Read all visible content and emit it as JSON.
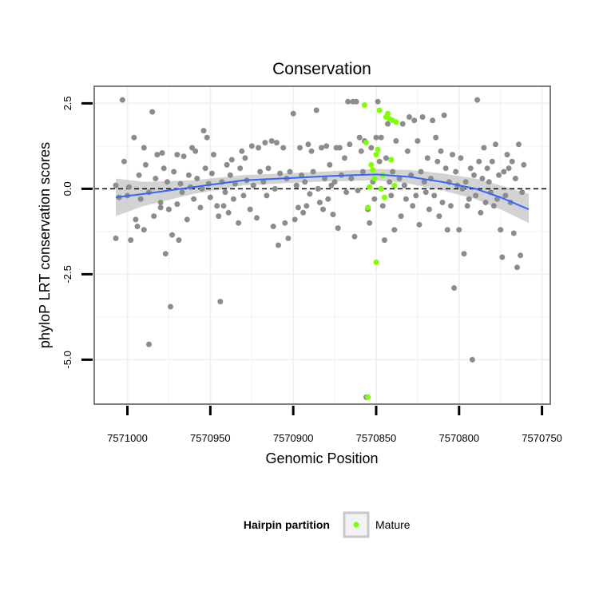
{
  "chart_data": {
    "type": "scatter",
    "title": "Conservation",
    "xlabel": "Genomic Position",
    "ylabel": "phyloP LRT conservation scores",
    "xlim": [
      7571020,
      7570745
    ],
    "ylim": [
      -6.3,
      3.0
    ],
    "x_reversed": true,
    "x_ticks": [
      7571000,
      7570950,
      7570900,
      7570850,
      7570800,
      7570750
    ],
    "x_tick_labels": [
      "7571000",
      "7570950",
      "7570900",
      "7570850",
      "7570800",
      "7570750"
    ],
    "y_ticks": [
      2.5,
      0.0,
      -2.5,
      -5.0
    ],
    "y_tick_labels": [
      "2.5",
      "0.0",
      "-2.5",
      "-5.0"
    ],
    "reference_line": {
      "y": 0,
      "style": "dashed"
    },
    "grid": true,
    "colors": {
      "other": "#8c8c8c",
      "mature": "#7fff00",
      "smooth": "#3366ff",
      "band": "#c8c8c8",
      "panel_border": "#7f7f7f",
      "grid": "#f2f2f2"
    },
    "legend": {
      "title": "Hairpin partition",
      "position": "bottom",
      "entries": [
        {
          "label": "Mature",
          "color": "#7fff00"
        }
      ]
    },
    "smooth": {
      "x": [
        7571007,
        7570990,
        7570960,
        7570930,
        7570900,
        7570875,
        7570850,
        7570830,
        7570810,
        7570790,
        7570775,
        7570758
      ],
      "y": [
        -0.25,
        -0.15,
        0.05,
        0.25,
        0.32,
        0.38,
        0.42,
        0.35,
        0.2,
        0.0,
        -0.25,
        -0.6
      ],
      "lower": [
        -0.8,
        -0.5,
        -0.15,
        0.1,
        0.18,
        0.22,
        0.25,
        0.15,
        -0.05,
        -0.3,
        -0.6,
        -1.0
      ],
      "upper": [
        0.3,
        0.2,
        0.25,
        0.4,
        0.46,
        0.52,
        0.58,
        0.55,
        0.45,
        0.3,
        0.1,
        -0.15
      ]
    },
    "series": [
      {
        "name": "Other",
        "points": [
          [
            7571007,
            -1.45
          ],
          [
            7571007,
            0.1
          ],
          [
            7571005,
            -0.25
          ],
          [
            7571003,
            2.6
          ],
          [
            7571002,
            0.8
          ],
          [
            7571000,
            -0.2
          ],
          [
            7570999,
            0.05
          ],
          [
            7570998,
            -1.5
          ],
          [
            7570996,
            1.5
          ],
          [
            7570995,
            -0.9
          ],
          [
            7570994,
            -1.1
          ],
          [
            7570993,
            0.4
          ],
          [
            7570992,
            -0.3
          ],
          [
            7570990,
            1.2
          ],
          [
            7570990,
            -1.2
          ],
          [
            7570989,
            0.7
          ],
          [
            7570987,
            -0.1
          ],
          [
            7570987,
            -4.55
          ],
          [
            7570985,
            2.25
          ],
          [
            7570984,
            -0.8
          ],
          [
            7570983,
            0.3
          ],
          [
            7570982,
            1.0
          ],
          [
            7570980,
            -0.4
          ],
          [
            7570980,
            -0.55
          ],
          [
            7570979,
            1.05
          ],
          [
            7570978,
            0.6
          ],
          [
            7570977,
            -1.9
          ],
          [
            7570976,
            0.2
          ],
          [
            7570975,
            -0.6
          ],
          [
            7570974,
            -3.45
          ],
          [
            7570973,
            -1.35
          ],
          [
            7570972,
            0.5
          ],
          [
            7570970,
            1.0
          ],
          [
            7570970,
            -0.45
          ],
          [
            7570969,
            -1.5
          ],
          [
            7570968,
            0.15
          ],
          [
            7570967,
            -0.1
          ],
          [
            7570966,
            0.95
          ],
          [
            7570964,
            -0.9
          ],
          [
            7570963,
            0.4
          ],
          [
            7570962,
            0.05
          ],
          [
            7570961,
            1.2
          ],
          [
            7570960,
            -0.3
          ],
          [
            7570959,
            1.1
          ],
          [
            7570958,
            0.3
          ],
          [
            7570956,
            -0.55
          ],
          [
            7570955,
            0.0
          ],
          [
            7570954,
            1.7
          ],
          [
            7570953,
            0.6
          ],
          [
            7570952,
            1.5
          ],
          [
            7570951,
            0.15
          ],
          [
            7570950,
            -0.25
          ],
          [
            7570949,
            0.45
          ],
          [
            7570948,
            1.0
          ],
          [
            7570946,
            -0.5
          ],
          [
            7570945,
            -0.8
          ],
          [
            7570944,
            -3.3
          ],
          [
            7570943,
            0.2
          ],
          [
            7570942,
            -0.5
          ],
          [
            7570941,
            -0.1
          ],
          [
            7570940,
            0.7
          ],
          [
            7570939,
            -0.7
          ],
          [
            7570938,
            0.4
          ],
          [
            7570937,
            0.85
          ],
          [
            7570936,
            -0.3
          ],
          [
            7570935,
            0.15
          ],
          [
            7570933,
            -1.0
          ],
          [
            7570932,
            0.6
          ],
          [
            7570931,
            1.1
          ],
          [
            7570930,
            -0.2
          ],
          [
            7570929,
            0.9
          ],
          [
            7570928,
            0.25
          ],
          [
            7570926,
            -0.6
          ],
          [
            7570925,
            1.25
          ],
          [
            7570924,
            0.1
          ],
          [
            7570922,
            -0.85
          ],
          [
            7570921,
            1.2
          ],
          [
            7570920,
            0.5
          ],
          [
            7570918,
            0.2
          ],
          [
            7570917,
            1.35
          ],
          [
            7570916,
            -0.2
          ],
          [
            7570915,
            0.6
          ],
          [
            7570913,
            1.4
          ],
          [
            7570912,
            -1.1
          ],
          [
            7570911,
            0.0
          ],
          [
            7570910,
            1.35
          ],
          [
            7570909,
            -1.65
          ],
          [
            7570908,
            0.45
          ],
          [
            7570906,
            1.2
          ],
          [
            7570905,
            -1.0
          ],
          [
            7570904,
            0.3
          ],
          [
            7570903,
            -1.45
          ],
          [
            7570902,
            0.5
          ],
          [
            7570900,
            2.2
          ],
          [
            7570899,
            -0.9
          ],
          [
            7570898,
            0.1
          ],
          [
            7570897,
            -0.55
          ],
          [
            7570896,
            1.2
          ],
          [
            7570895,
            0.4
          ],
          [
            7570894,
            -0.7
          ],
          [
            7570893,
            0.2
          ],
          [
            7570892,
            -0.5
          ],
          [
            7570891,
            1.3
          ],
          [
            7570890,
            -0.15
          ],
          [
            7570889,
            1.1
          ],
          [
            7570888,
            0.5
          ],
          [
            7570886,
            2.3
          ],
          [
            7570885,
            0.0
          ],
          [
            7570884,
            -0.4
          ],
          [
            7570883,
            1.2
          ],
          [
            7570882,
            -0.6
          ],
          [
            7570881,
            0.3
          ],
          [
            7570880,
            1.25
          ],
          [
            7570879,
            -0.3
          ],
          [
            7570878,
            0.7
          ],
          [
            7570877,
            0.1
          ],
          [
            7570876,
            -0.75
          ],
          [
            7570875,
            0.2
          ],
          [
            7570874,
            1.2
          ],
          [
            7570873,
            -1.15
          ],
          [
            7570872,
            1.2
          ],
          [
            7570871,
            0.4
          ],
          [
            7570869,
            0.9
          ],
          [
            7570868,
            -0.1
          ],
          [
            7570867,
            2.55
          ],
          [
            7570866,
            1.3
          ],
          [
            7570865,
            0.3
          ],
          [
            7570864,
            2.55
          ],
          [
            7570863,
            -1.4
          ],
          [
            7570862,
            2.55
          ],
          [
            7570861,
            -0.05
          ],
          [
            7570860,
            1.5
          ],
          [
            7570859,
            1.1
          ],
          [
            7570858,
            0.5
          ],
          [
            7570857,
            1.4
          ],
          [
            7570856,
            -6.1
          ],
          [
            7570855,
            -0.6
          ],
          [
            7570854,
            -1.0
          ],
          [
            7570853,
            1.2
          ],
          [
            7570852,
            0.2
          ],
          [
            7570851,
            -0.3
          ],
          [
            7570850,
            1.5
          ],
          [
            7570849,
            2.55
          ],
          [
            7570848,
            0.8
          ],
          [
            7570847,
            1.5
          ],
          [
            7570846,
            -0.5
          ],
          [
            7570845,
            -1.5
          ],
          [
            7570844,
            0.9
          ],
          [
            7570843,
            1.9
          ],
          [
            7570842,
            0.2
          ],
          [
            7570841,
            -0.2
          ],
          [
            7570840,
            0.5
          ],
          [
            7570839,
            -1.2
          ],
          [
            7570838,
            1.4
          ],
          [
            7570836,
            0.3
          ],
          [
            7570835,
            -0.8
          ],
          [
            7570834,
            1.9
          ],
          [
            7570833,
            0.1
          ],
          [
            7570832,
            -0.3
          ],
          [
            7570831,
            1.1
          ],
          [
            7570830,
            2.1
          ],
          [
            7570829,
            0.4
          ],
          [
            7570828,
            -0.5
          ],
          [
            7570827,
            2.0
          ],
          [
            7570826,
            -0.2
          ],
          [
            7570825,
            1.4
          ],
          [
            7570824,
            -1.05
          ],
          [
            7570823,
            0.5
          ],
          [
            7570822,
            2.1
          ],
          [
            7570821,
            0.2
          ],
          [
            7570820,
            -0.1
          ],
          [
            7570819,
            0.9
          ],
          [
            7570818,
            -0.6
          ],
          [
            7570817,
            0.3
          ],
          [
            7570816,
            2.0
          ],
          [
            7570815,
            -0.2
          ],
          [
            7570814,
            1.5
          ],
          [
            7570813,
            0.8
          ],
          [
            7570812,
            -0.8
          ],
          [
            7570811,
            1.1
          ],
          [
            7570810,
            -0.4
          ],
          [
            7570809,
            2.15
          ],
          [
            7570808,
            0.6
          ],
          [
            7570807,
            -1.2
          ],
          [
            7570806,
            0.2
          ],
          [
            7570805,
            -0.5
          ],
          [
            7570804,
            1.0
          ],
          [
            7570803,
            -2.9
          ],
          [
            7570802,
            0.5
          ],
          [
            7570801,
            0.1
          ],
          [
            7570800,
            -1.2
          ],
          [
            7570799,
            0.9
          ],
          [
            7570798,
            0.0
          ],
          [
            7570797,
            -1.9
          ],
          [
            7570796,
            0.2
          ],
          [
            7570795,
            -0.5
          ],
          [
            7570794,
            -0.3
          ],
          [
            7570793,
            0.6
          ],
          [
            7570792,
            -5.0
          ],
          [
            7570791,
            0.4
          ],
          [
            7570790,
            -0.2
          ],
          [
            7570789,
            2.6
          ],
          [
            7570788,
            0.8
          ],
          [
            7570787,
            -0.7
          ],
          [
            7570786,
            0.3
          ],
          [
            7570785,
            1.2
          ],
          [
            7570784,
            -0.4
          ],
          [
            7570783,
            0.6
          ],
          [
            7570782,
            0.2
          ],
          [
            7570781,
            -0.1
          ],
          [
            7570780,
            0.8
          ],
          [
            7570779,
            -0.5
          ],
          [
            7570778,
            1.3
          ],
          [
            7570777,
            -0.3
          ],
          [
            7570776,
            0.4
          ],
          [
            7570775,
            -1.2
          ],
          [
            7570774,
            -2.0
          ],
          [
            7570773,
            0.5
          ],
          [
            7570772,
            -0.2
          ],
          [
            7570771,
            1.0
          ],
          [
            7570770,
            0.6
          ],
          [
            7570769,
            -0.4
          ],
          [
            7570768,
            0.8
          ],
          [
            7570767,
            -1.3
          ],
          [
            7570766,
            0.3
          ],
          [
            7570765,
            -2.3
          ],
          [
            7570764,
            1.3
          ],
          [
            7570763,
            -1.95
          ],
          [
            7570762,
            -0.1
          ],
          [
            7570761,
            0.7
          ]
        ]
      },
      {
        "name": "Mature",
        "points": [
          [
            7570857,
            2.45
          ],
          [
            7570856,
            1.35
          ],
          [
            7570855,
            -0.55
          ],
          [
            7570854,
            0.05
          ],
          [
            7570852,
            0.55
          ],
          [
            7570851,
            0.3
          ],
          [
            7570850,
            -2.15
          ],
          [
            7570850,
            1.0
          ],
          [
            7570849,
            1.15
          ],
          [
            7570848,
            2.3
          ],
          [
            7570847,
            0.0
          ],
          [
            7570846,
            0.4
          ],
          [
            7570845,
            -0.25
          ],
          [
            7570844,
            2.1
          ],
          [
            7570843,
            2.2
          ],
          [
            7570842,
            2.05
          ],
          [
            7570841,
            0.85
          ],
          [
            7570840,
            2.0
          ],
          [
            7570839,
            0.1
          ],
          [
            7570838,
            1.95
          ],
          [
            7570855,
            -6.1
          ],
          [
            7570853,
            0.7
          ]
        ]
      }
    ]
  }
}
